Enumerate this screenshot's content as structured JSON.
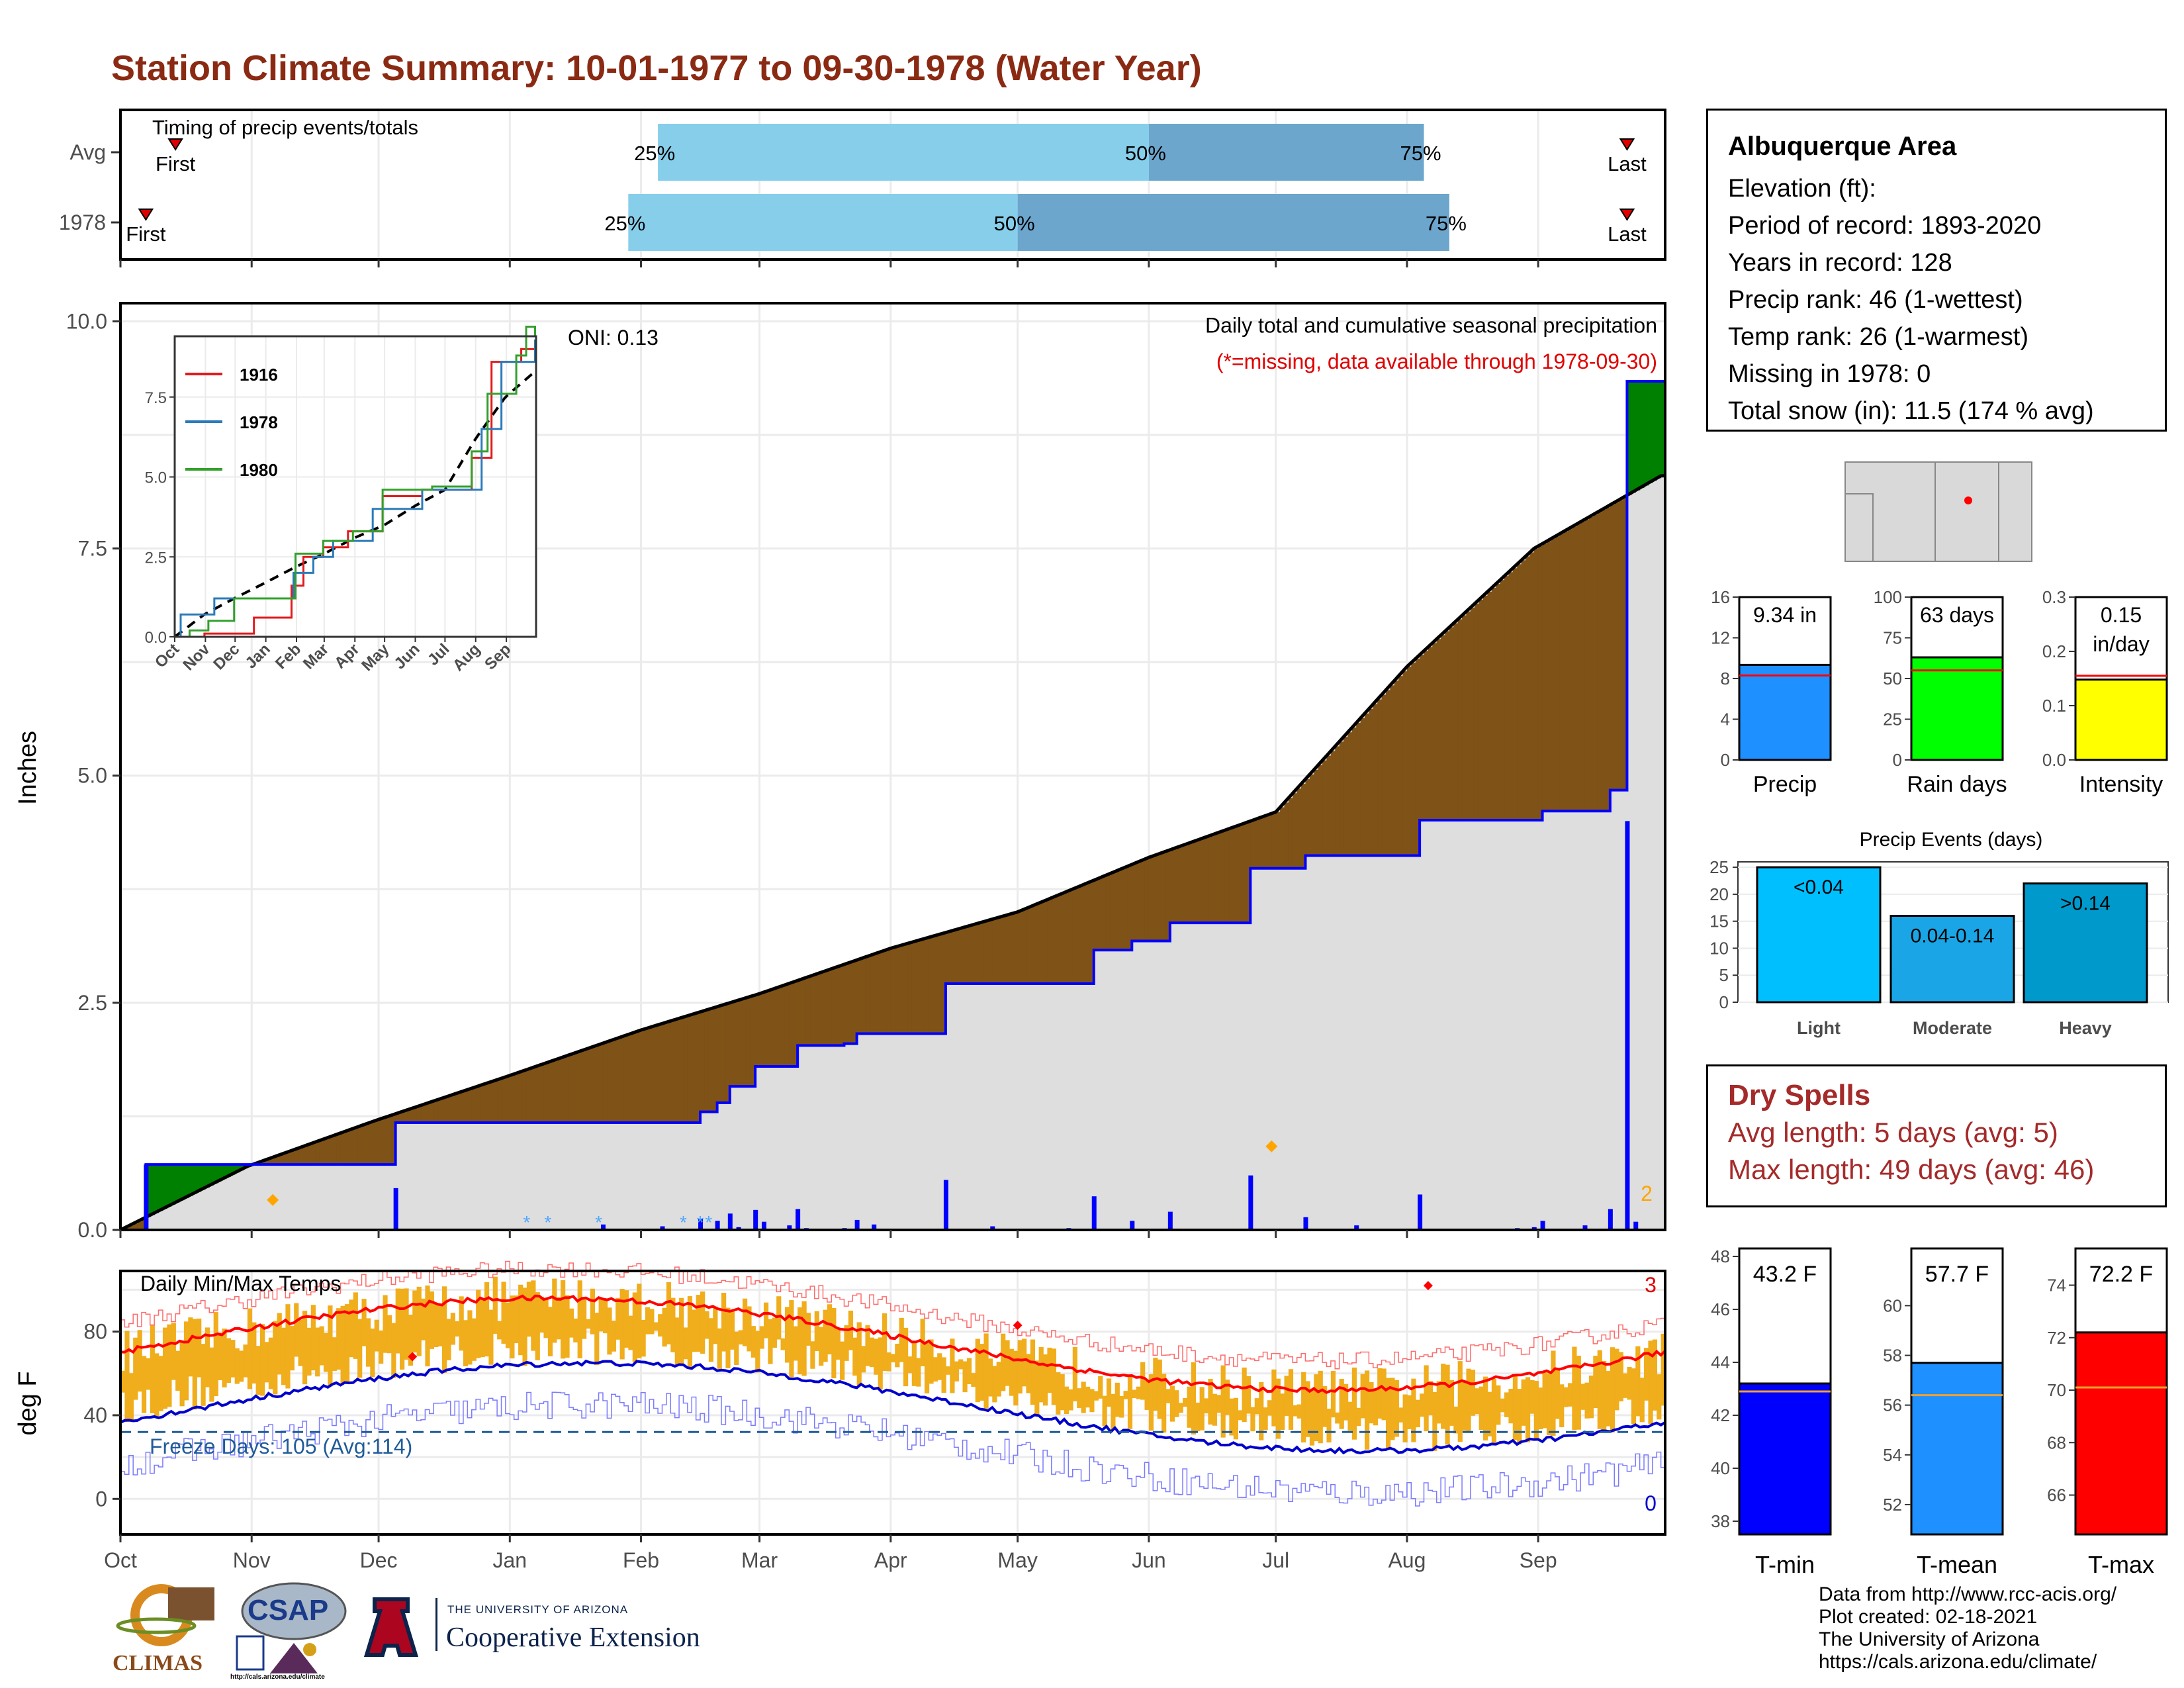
{
  "title": "Station Climate Summary: 10-01-1977 to 09-30-1978 (Water Year)",
  "timing": {
    "label": "Timing of precip events/totals",
    "rows": [
      {
        "name": "Avg",
        "first_label": "First",
        "last_label": "Last",
        "p25": "25%",
        "p50": "50%",
        "p75": "75%",
        "first_day": 13,
        "p25_day": 127,
        "p50_day": 243,
        "p75_day": 308,
        "last_day": 356
      },
      {
        "name": "1978",
        "first_label": "First",
        "last_label": "Last",
        "p25": "25%",
        "p50": "50%",
        "p75": "75%",
        "first_day": 6,
        "p25_day": 120,
        "p50_day": 212,
        "p75_day": 314,
        "last_day": 356
      }
    ]
  },
  "precip_panel": {
    "ylabel": "Inches",
    "yticks": [
      "0.0",
      "2.5",
      "5.0",
      "7.5",
      "10.0"
    ],
    "oni": "ONI: 0.13",
    "caption": "Daily total and cumulative seasonal precipitation",
    "missing_note": "(*=missing, data available through 1978-09-30)",
    "count_label": "2"
  },
  "months": [
    "Oct",
    "Nov",
    "Dec",
    "Jan",
    "Feb",
    "Mar",
    "Apr",
    "May",
    "Jun",
    "Jul",
    "Aug",
    "Sep"
  ],
  "inset": {
    "yticks": [
      "0.0",
      "2.5",
      "5.0",
      "7.5"
    ],
    "months": [
      "Oct",
      "Nov",
      "Dec",
      "Jan",
      "Feb",
      "Mar",
      "Apr",
      "May",
      "Jun",
      "Jul",
      "Aug",
      "Sep"
    ],
    "legend": [
      {
        "name": "1916",
        "color": "#e31a1c"
      },
      {
        "name": "1978",
        "color": "#2b7bba"
      },
      {
        "name": "1980",
        "color": "#33a02c"
      }
    ]
  },
  "temp_panel": {
    "label": "Daily Min/Max Temps",
    "ylabel": "deg F",
    "yticks": [
      "0",
      "40",
      "80"
    ],
    "freeze": "Freeze Days: 105 (Avg:114)",
    "top_count": "3",
    "bottom_count": "0"
  },
  "station": {
    "name": "Albuquerque Area",
    "lines": [
      "Elevation (ft):",
      "Period of record: 1893-2020",
      "Years in record: 128",
      "Precip rank: 46 (1-wettest)",
      "Temp rank: 26 (1-warmest)",
      "Missing in 1978: 0",
      "Total snow (in): 11.5 (174 % avg)"
    ]
  },
  "mini_bars": [
    {
      "label": "Precip",
      "value_text": "9.34 in",
      "value": 9.34,
      "avg": 8.3,
      "max": 16,
      "ticks": [
        "0",
        "4",
        "8",
        "12",
        "16"
      ],
      "color": "#1e90ff"
    },
    {
      "label": "Rain days",
      "value_text": "63 days",
      "value": 63,
      "avg": 55,
      "max": 100,
      "ticks": [
        "0",
        "25",
        "50",
        "75",
        "100"
      ],
      "color": "#00ff00"
    },
    {
      "label": "Intensity",
      "value_text": "0.15 in/day",
      "value": 0.148,
      "avg": 0.155,
      "max": 0.3,
      "ticks": [
        "0.0",
        "0.1",
        "0.2",
        "0.3"
      ],
      "color": "#ffff00"
    }
  ],
  "events": {
    "title": "Precip Events (days)",
    "yticks": [
      "0",
      "5",
      "10",
      "15",
      "20",
      "25"
    ],
    "bars": [
      {
        "label": "Light",
        "text": "<0.04",
        "value": 25,
        "color": "#00bfff"
      },
      {
        "label": "Moderate",
        "text": "0.04-0.14",
        "value": 16,
        "color": "#1aa6e6"
      },
      {
        "label": "Heavy",
        "text": ">0.14",
        "value": 22,
        "color": "#0099cc"
      }
    ]
  },
  "dry_spells": {
    "title": "Dry Spells",
    "avg": "Avg length: 5 days (avg: 5)",
    "max": "Max length: 49 days (avg: 46)"
  },
  "temp_bars": [
    {
      "label": "T-min",
      "value_text": "43.2 F",
      "value": 43.2,
      "avg": 42.9,
      "min": 37.5,
      "max": 48.3,
      "ticks": [
        "38",
        "40",
        "42",
        "44",
        "46",
        "48"
      ],
      "color": "#0000ff"
    },
    {
      "label": "T-mean",
      "value_text": "57.7 F",
      "value": 57.7,
      "avg": 56.4,
      "min": 50.8,
      "max": 62.3,
      "ticks": [
        "52",
        "54",
        "56",
        "58",
        "60"
      ],
      "color": "#1e90ff"
    },
    {
      "label": "T-max",
      "value_text": "72.2 F",
      "value": 72.2,
      "avg": 70.1,
      "min": 64.5,
      "max": 75.4,
      "ticks": [
        "66",
        "68",
        "70",
        "72",
        "74"
      ],
      "color": "#ff0000"
    }
  ],
  "credits": [
    "Data from http://www.rcc-acis.org/",
    "Plot created: 02-18-2021",
    "The University of Arizona",
    "https://cals.arizona.edu/climate/"
  ],
  "logos": {
    "climas": "CLIMAS",
    "csap": "CSAP",
    "csap_url": "http://cals.arizona.edu/climate",
    "ua_top": "THE UNIVERSITY OF ARIZONA",
    "ua_bottom": "Cooperative Extension"
  },
  "chart_data": {
    "type": "area",
    "title": "Station Climate Summary: 10-01-1977 to 09-30-1978 (Water Year)",
    "xlabel": "",
    "ylabel": "Inches",
    "ylim": [
      0,
      10
    ],
    "x_unit": "day of water year (0 = Oct 1)",
    "series": [
      {
        "name": "1978",
        "x": [
          0,
          6,
          17,
          34,
          42,
          65,
          73,
          86,
          101,
          104,
          127,
          137,
          141,
          144,
          150,
          160,
          171,
          174,
          195,
          230,
          239,
          248,
          267,
          280,
          307,
          318,
          330,
          332,
          336,
          352,
          356,
          360
        ],
        "values": [
          0.0,
          0.72,
          0.72,
          0.72,
          0.72,
          1.18,
          1.18,
          1.18,
          1.18,
          1.18,
          1.18,
          1.3,
          1.4,
          1.58,
          1.8,
          2.03,
          2.05,
          2.16,
          2.71,
          3.08,
          3.18,
          3.38,
          3.98,
          4.12,
          4.51,
          4.51,
          4.51,
          4.51,
          4.61,
          4.84,
          9.34,
          9.34
        ]
      },
      {
        "name": "Avg",
        "x": [
          0,
          30,
          60,
          92,
          123,
          151,
          182,
          212,
          243,
          273,
          304,
          334,
          364
        ],
        "values": [
          0.0,
          0.7,
          1.2,
          1.7,
          2.2,
          2.6,
          3.1,
          3.5,
          4.1,
          4.6,
          6.2,
          7.5,
          8.3
        ]
      }
    ]
  }
}
